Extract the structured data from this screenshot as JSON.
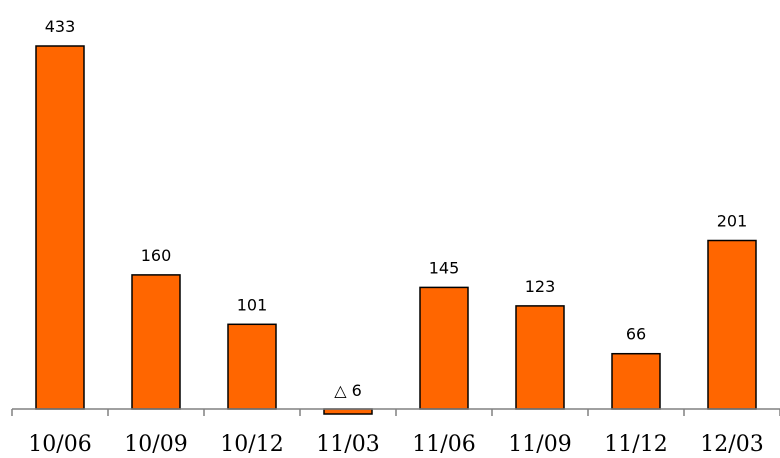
{
  "chart_data": {
    "type": "bar",
    "title": "",
    "xlabel": "",
    "ylabel": "",
    "categories": [
      "10/06",
      "10/09",
      "10/12",
      "11/03",
      "11/06",
      "11/09",
      "11/12",
      "12/03"
    ],
    "values": [
      433,
      160,
      101,
      -6,
      145,
      123,
      66,
      201
    ],
    "data_labels": [
      "433",
      "160",
      "101",
      "△ 6",
      "145",
      "123",
      "66",
      "201"
    ],
    "ylim": [
      -10,
      440
    ],
    "grid": false,
    "legend": "none",
    "colors": {
      "bar_fill": "#ff6600",
      "bar_stroke": "#000000",
      "axis": "#808080"
    }
  }
}
